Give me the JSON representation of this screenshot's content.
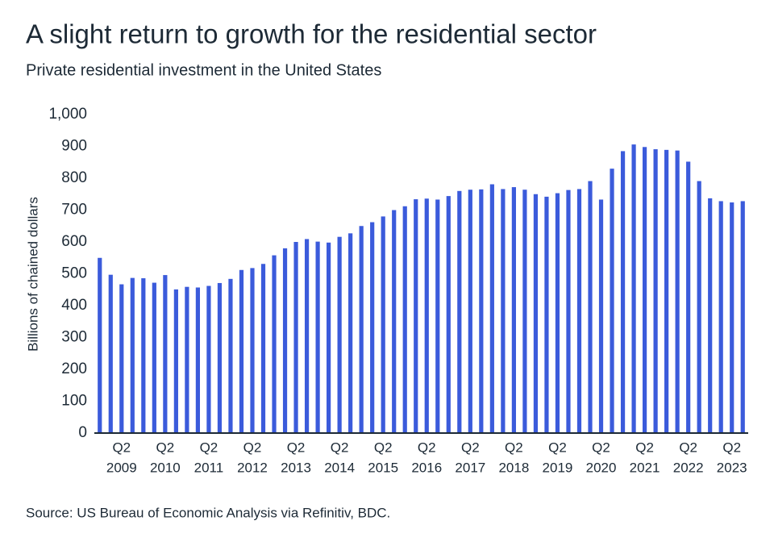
{
  "chart_data": {
    "type": "bar",
    "title": "A slight return to growth for the residential sector",
    "subtitle": "Private residential investment in the United States",
    "y_label": "Billions of chained dollars",
    "source": "Source: US Bureau of Economic Analysis via Refinitiv, BDC.",
    "color": "#3b5bdb",
    "categories": [
      null,
      null,
      [
        "Q2",
        "2009"
      ],
      null,
      null,
      null,
      [
        "Q2",
        "2010"
      ],
      null,
      null,
      null,
      [
        "Q2",
        "2011"
      ],
      null,
      null,
      null,
      [
        "Q2",
        "2012"
      ],
      null,
      null,
      null,
      [
        "Q2",
        "2013"
      ],
      null,
      null,
      null,
      [
        "Q2",
        "2014"
      ],
      null,
      null,
      null,
      [
        "Q2",
        "2015"
      ],
      null,
      null,
      null,
      [
        "Q2",
        "2016"
      ],
      null,
      null,
      null,
      [
        "Q2",
        "2017"
      ],
      null,
      null,
      null,
      [
        "Q2",
        "2018"
      ],
      null,
      null,
      null,
      [
        "Q2",
        "2019"
      ],
      null,
      null,
      null,
      [
        "Q2",
        "2020"
      ],
      null,
      null,
      null,
      [
        "Q2",
        "2021"
      ],
      null,
      null,
      null,
      [
        "Q2",
        "2022"
      ],
      null,
      null,
      null,
      [
        "Q2",
        "2023"
      ],
      null
    ],
    "values": [
      550,
      497,
      467,
      487,
      486,
      472,
      496,
      451,
      459,
      457,
      462,
      471,
      484,
      512,
      518,
      531,
      558,
      580,
      600,
      609,
      601,
      598,
      616,
      627,
      650,
      662,
      680,
      700,
      712,
      734,
      736,
      733,
      744,
      760,
      764,
      765,
      781,
      766,
      772,
      764,
      750,
      742,
      753,
      763,
      766,
      791,
      733,
      830,
      885,
      906,
      898,
      891,
      889,
      887,
      852,
      791,
      737,
      728,
      724,
      728
    ],
    "ylim": [
      0,
      1000
    ],
    "yticks": [
      0,
      100,
      200,
      300,
      400,
      500,
      600,
      700,
      800,
      900,
      {
        "value": 1000,
        "label": "1,000"
      }
    ]
  }
}
